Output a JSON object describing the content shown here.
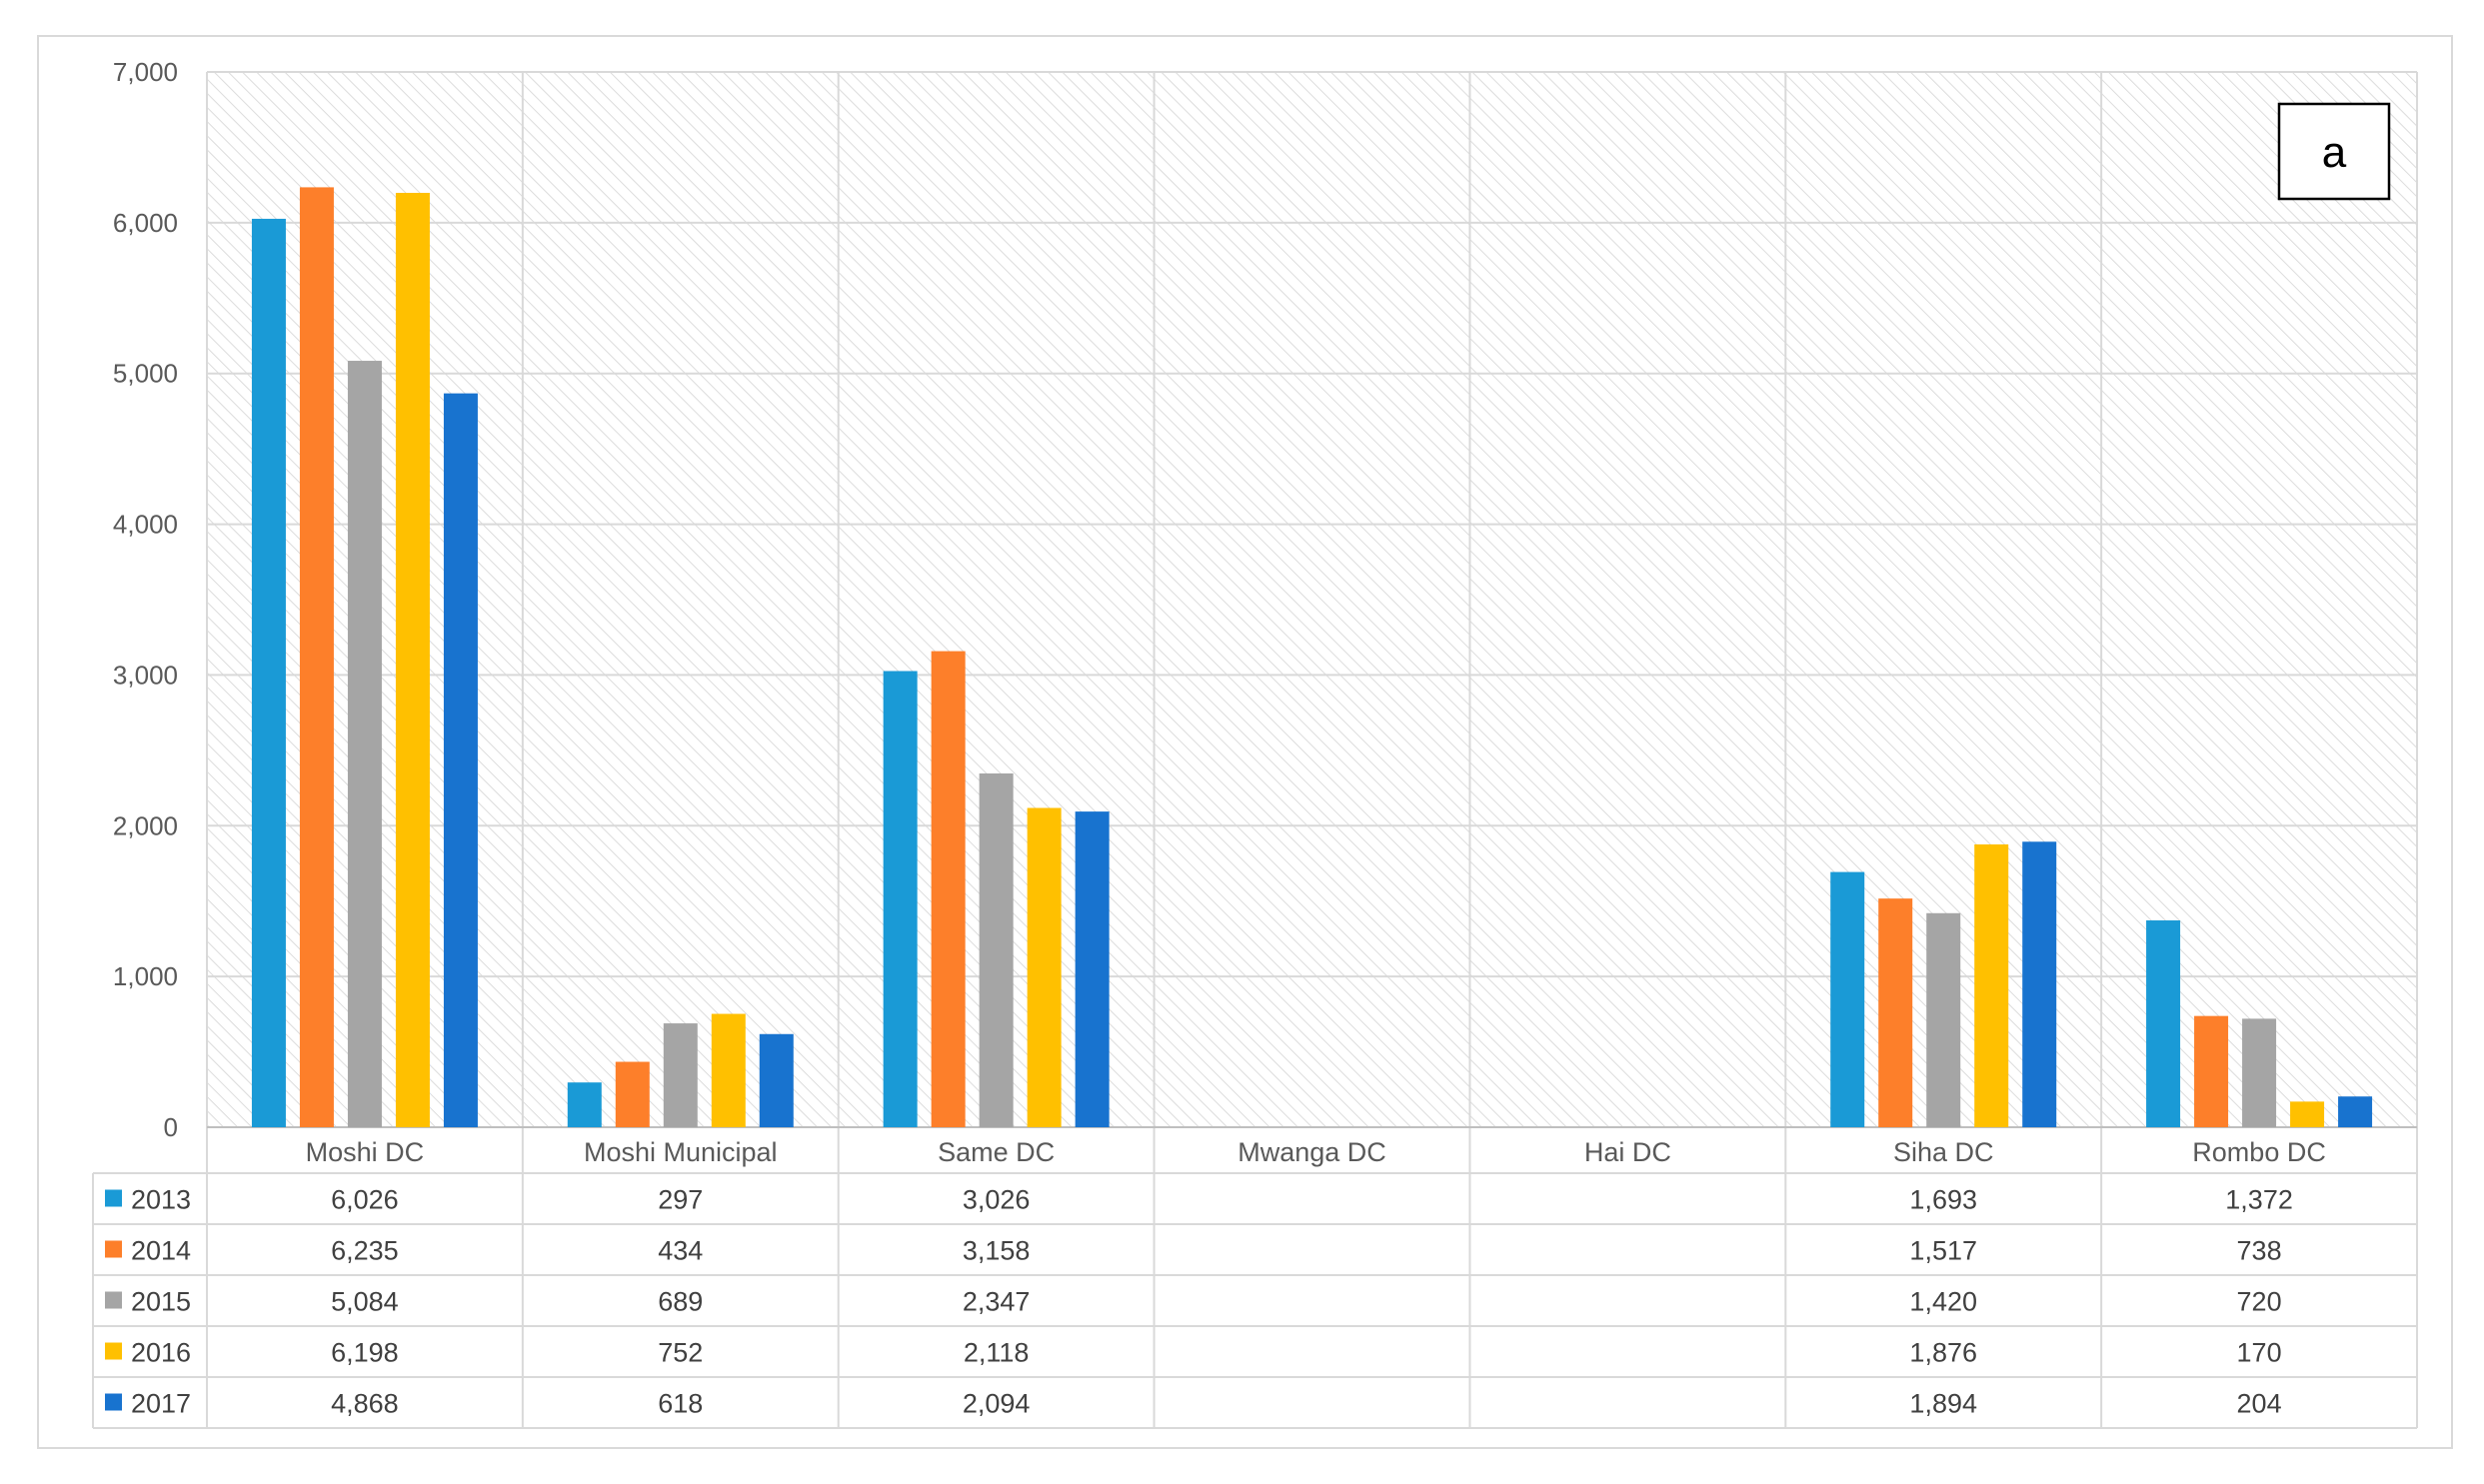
{
  "chart_data": {
    "type": "bar",
    "panel_label": "a",
    "categories": [
      "Moshi DC",
      "Moshi Municipal",
      "Same DC",
      "Mwanga DC",
      "Hai DC",
      "Siha DC",
      "Rombo DC"
    ],
    "series": [
      {
        "name": "2013",
        "color": "#1a9ad6",
        "values": [
          6026,
          297,
          3026,
          null,
          null,
          1693,
          1372
        ]
      },
      {
        "name": "2014",
        "color": "#fd7f2a",
        "values": [
          6235,
          434,
          3158,
          null,
          null,
          1517,
          738
        ]
      },
      {
        "name": "2015",
        "color": "#a5a5a5",
        "values": [
          5084,
          689,
          2347,
          null,
          null,
          1420,
          720
        ]
      },
      {
        "name": "2016",
        "color": "#ffc000",
        "values": [
          6198,
          752,
          2118,
          null,
          null,
          1876,
          170
        ]
      },
      {
        "name": "2017",
        "color": "#1873cf",
        "values": [
          4868,
          618,
          2094,
          null,
          null,
          1894,
          204
        ]
      }
    ],
    "table_values": [
      [
        "6,026",
        "297",
        "3,026",
        "",
        "",
        "1,693",
        "1,372"
      ],
      [
        "6,235",
        "434",
        "3,158",
        "",
        "",
        "1,517",
        "738"
      ],
      [
        "5,084",
        "689",
        "2,347",
        "",
        "",
        "1,420",
        "720"
      ],
      [
        "6,198",
        "752",
        "2,118",
        "",
        "",
        "1,876",
        "170"
      ],
      [
        "4,868",
        "618",
        "2,094",
        "",
        "",
        "1,894",
        "204"
      ]
    ],
    "y_ticks": [
      "0",
      "1,000",
      "2,000",
      "3,000",
      "4,000",
      "5,000",
      "6,000",
      "7,000"
    ],
    "ylim": [
      0,
      7000
    ],
    "grid": true,
    "legend": "data-table"
  }
}
